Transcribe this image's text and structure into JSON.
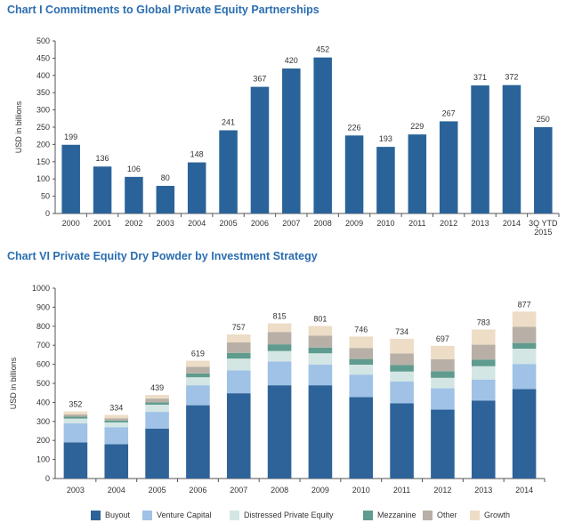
{
  "chart_data": [
    {
      "type": "bar",
      "title": "Chart I  Commitments to Global Private Equity Partnerships",
      "ylabel": "USD in billions",
      "xlabel": "",
      "ylim": [
        0,
        500
      ],
      "yticks": [
        0,
        50,
        100,
        150,
        200,
        250,
        300,
        350,
        400,
        450,
        500
      ],
      "categories": [
        "2000",
        "2001",
        "2002",
        "2003",
        "2004",
        "2005",
        "2006",
        "2007",
        "2008",
        "2009",
        "2010",
        "2011",
        "2012",
        "2013",
        "2014",
        "3Q YTD 2015"
      ],
      "values": [
        199,
        136,
        106,
        80,
        148,
        241,
        367,
        420,
        452,
        226,
        193,
        229,
        267,
        371,
        372,
        250
      ],
      "color": "#2a6399",
      "grid": false
    },
    {
      "type": "bar",
      "stacked": true,
      "title": "Chart VI  Private Equity Dry Powder by Investment Strategy",
      "ylabel": "USD in billions",
      "xlabel": "",
      "ylim": [
        0,
        1000
      ],
      "yticks": [
        0,
        100,
        200,
        300,
        400,
        500,
        600,
        700,
        800,
        900,
        1000
      ],
      "categories": [
        "2003",
        "2004",
        "2005",
        "2006",
        "2007",
        "2008",
        "2009",
        "2010",
        "2011",
        "2012",
        "2013",
        "2014"
      ],
      "totals": [
        352,
        334,
        439,
        619,
        757,
        815,
        801,
        746,
        734,
        697,
        783,
        877
      ],
      "legend_position": "bottom",
      "series": [
        {
          "name": "Buyout",
          "color": "#2e6399",
          "values": [
            190,
            180,
            262,
            385,
            448,
            490,
            490,
            428,
            395,
            362,
            410,
            470
          ]
        },
        {
          "name": "Venture Capital",
          "color": "#9fc2e6",
          "values": [
            100,
            90,
            88,
            105,
            120,
            125,
            108,
            118,
            115,
            112,
            110,
            132
          ]
        },
        {
          "name": "Distressed Private Equity",
          "color": "#d3e6e4",
          "values": [
            25,
            25,
            38,
            42,
            62,
            55,
            60,
            52,
            52,
            55,
            70,
            80
          ]
        },
        {
          "name": "Mezzanine",
          "color": "#5f9b8e",
          "values": [
            10,
            10,
            12,
            20,
            30,
            35,
            30,
            30,
            35,
            35,
            35,
            30
          ]
        },
        {
          "name": "Other",
          "color": "#b8b0a6",
          "values": [
            12,
            12,
            20,
            35,
            55,
            65,
            63,
            58,
            60,
            63,
            78,
            85
          ]
        },
        {
          "name": "Growth",
          "color": "#eddcc6",
          "values": [
            15,
            17,
            19,
            32,
            42,
            45,
            50,
            60,
            77,
            70,
            80,
            80
          ]
        }
      ]
    }
  ]
}
